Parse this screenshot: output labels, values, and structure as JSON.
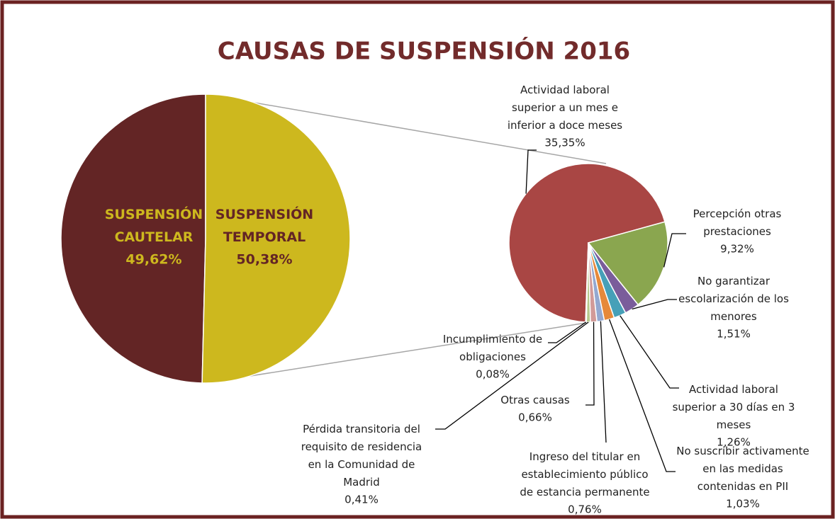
{
  "chart_data": {
    "type": "pie-of-pie",
    "title": "CAUSAS DE SUSPENSIÓN 2016",
    "categories": [
      "SUSPENSIÓN CAUTELAR",
      "SUSPENSIÓN TEMPORAL"
    ],
    "values": [
      49.62,
      50.38
    ],
    "value_labels": [
      "49,62%",
      "50,38%"
    ],
    "colors": [
      "#632525",
      "#cdb81e"
    ],
    "sub_categories": [
      "Actividad laboral superior a un mes e inferior a doce meses",
      "Percepción otras prestaciones",
      "No garantizar escolarización de los menores",
      "Actividad laboral superior a 30 días en 3 meses",
      "No suscribir activamente en las medidas contenidas en PII",
      "Ingreso del titular en establecimiento público de estancia permanente",
      "Otras causas",
      "Pérdida transitoria del requisito de residencia en la Comunidad de Madrid",
      "Incumplimiento de obligaciones"
    ],
    "sub_values": [
      35.35,
      9.32,
      1.51,
      1.26,
      1.03,
      0.76,
      0.66,
      0.41,
      0.08
    ],
    "sub_value_labels": [
      "35,35%",
      "9,32%",
      "1,51%",
      "1,26%",
      "1,03%",
      "0,76%",
      "0,66%",
      "0,41%",
      "0,08%"
    ],
    "sub_colors": [
      "#a94644",
      "#8aa64f",
      "#7a5d9b",
      "#46a0b8",
      "#e6893a",
      "#94a8d0",
      "#d29a98",
      "#b7c98d",
      "#a898bc"
    ]
  }
}
